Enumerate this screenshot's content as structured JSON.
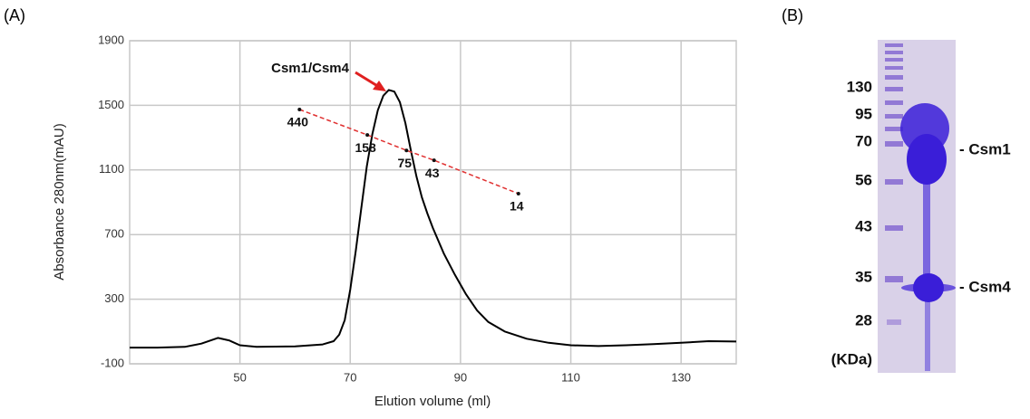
{
  "chart_data": {
    "type": "line",
    "x_label": "Elution volume (ml)",
    "y_label": "Absorbance 280nm(mAU)",
    "x": [
      30,
      35,
      40,
      43,
      46,
      48,
      50,
      53,
      60,
      65,
      67,
      68,
      69,
      70,
      71,
      72,
      73,
      74,
      75,
      76,
      77,
      78,
      79,
      80,
      81,
      82,
      83,
      84,
      85,
      87,
      89,
      91,
      93,
      95,
      98,
      102,
      106,
      110,
      115,
      120,
      125,
      130,
      135,
      140
    ],
    "values": [
      0,
      0,
      5,
      25,
      60,
      45,
      15,
      5,
      8,
      20,
      40,
      80,
      170,
      360,
      600,
      860,
      1120,
      1320,
      1470,
      1560,
      1595,
      1585,
      1520,
      1390,
      1220,
      1060,
      930,
      830,
      740,
      580,
      450,
      330,
      230,
      160,
      100,
      55,
      30,
      15,
      10,
      15,
      22,
      30,
      40,
      38
    ],
    "color": "#000000",
    "xlim": [
      30,
      140
    ],
    "xticks": [
      50,
      70,
      90,
      110,
      130
    ],
    "ylim": [
      -100,
      1900
    ],
    "yticks": [
      -100,
      300,
      700,
      1100,
      1500,
      1900
    ],
    "grid": true,
    "annotation": "Csm1/Csm4",
    "markers": {
      "x": [
        60.8,
        73.1,
        80.2,
        85.2,
        100.5
      ],
      "values": [
        1474,
        1317,
        1221,
        1160,
        953
      ],
      "labels": [
        "440",
        "158",
        "75",
        "43",
        "14"
      ],
      "color": "#e03030"
    }
  },
  "panels": [
    "(A)",
    "(B)"
  ],
  "gel": {
    "ladder_labels": [
      "130",
      "95",
      "70",
      "56",
      "43",
      "35",
      "28"
    ],
    "unit_label": "(KDa)",
    "band_labels": [
      "- Csm1",
      "- Csm4"
    ]
  }
}
